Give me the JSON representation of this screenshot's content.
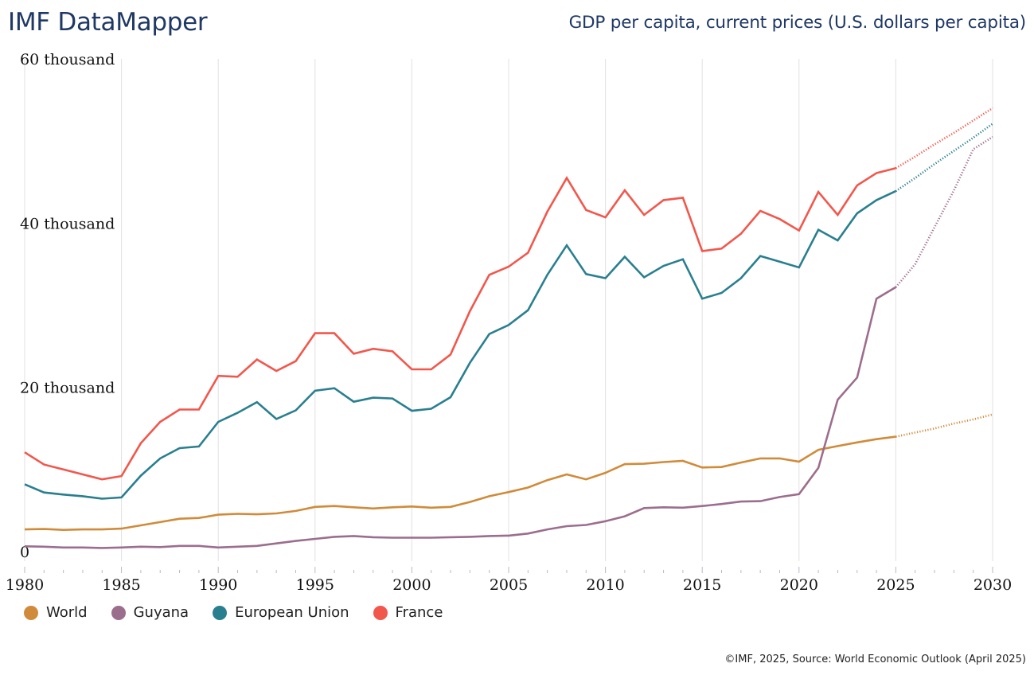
{
  "header": {
    "app_title": "IMF DataMapper",
    "chart_title": "GDP per capita, current prices (U.S. dollars per capita)"
  },
  "footer": {
    "credit": "©IMF, 2025, Source: World Economic Outlook (April 2025)"
  },
  "chart_data": {
    "type": "line",
    "title": "GDP per capita, current prices (U.S. dollars per capita)",
    "xlabel": "",
    "ylabel": "",
    "xlim": [
      1980,
      2030
    ],
    "ylim": [
      0,
      60000
    ],
    "grid": "vertical",
    "legend_position": "bottom-left",
    "projection_start": 2025,
    "y_ticks": [
      {
        "value": 0,
        "label": "0"
      },
      {
        "value": 20000,
        "label": "20 thousand"
      },
      {
        "value": 40000,
        "label": "40 thousand"
      },
      {
        "value": 60000,
        "label": "60 thousand"
      }
    ],
    "x_ticks": [
      {
        "value": 1980,
        "label": "1980"
      },
      {
        "value": 1985,
        "label": "1985"
      },
      {
        "value": 1990,
        "label": "1990"
      },
      {
        "value": 1995,
        "label": "1995"
      },
      {
        "value": 2000,
        "label": "2000"
      },
      {
        "value": 2005,
        "label": "2005"
      },
      {
        "value": 2010,
        "label": "2010"
      },
      {
        "value": 2015,
        "label": "2015"
      },
      {
        "value": 2020,
        "label": "2020"
      },
      {
        "value": 2025,
        "label": "2025"
      },
      {
        "value": 2030,
        "label": "2030"
      }
    ],
    "x": [
      1980,
      1981,
      1982,
      1983,
      1984,
      1985,
      1986,
      1987,
      1988,
      1989,
      1990,
      1991,
      1992,
      1993,
      1994,
      1995,
      1996,
      1997,
      1998,
      1999,
      2000,
      2001,
      2002,
      2003,
      2004,
      2005,
      2006,
      2007,
      2008,
      2009,
      2010,
      2011,
      2012,
      2013,
      2014,
      2015,
      2016,
      2017,
      2018,
      2019,
      2020,
      2021,
      2022,
      2023,
      2024,
      2025,
      2026,
      2027,
      2028,
      2029,
      2030
    ],
    "series": [
      {
        "name": "World",
        "color": "#d08b3a",
        "values": [
          2700,
          2750,
          2650,
          2700,
          2700,
          2800,
          3200,
          3600,
          4000,
          4100,
          4500,
          4600,
          4550,
          4650,
          4950,
          5450,
          5550,
          5400,
          5250,
          5400,
          5500,
          5350,
          5450,
          6050,
          6750,
          7250,
          7800,
          8700,
          9400,
          8800,
          9600,
          10650,
          10700,
          10900,
          11050,
          10250,
          10300,
          10850,
          11350,
          11350,
          10950,
          12400,
          12850,
          13300,
          13700,
          14000,
          14500,
          15000,
          15600,
          16100,
          16700
        ]
      },
      {
        "name": "Guyana",
        "color": "#9c6e8d",
        "values": [
          650,
          600,
          500,
          500,
          450,
          500,
          600,
          550,
          700,
          700,
          500,
          600,
          700,
          1000,
          1300,
          1550,
          1800,
          1900,
          1750,
          1700,
          1700,
          1700,
          1750,
          1800,
          1900,
          1950,
          2200,
          2700,
          3100,
          3250,
          3700,
          4300,
          5300,
          5400,
          5350,
          5550,
          5800,
          6100,
          6150,
          6650,
          7000,
          10200,
          18500,
          21200,
          30800,
          32200,
          35000,
          39500,
          44000,
          49000,
          50500
        ]
      },
      {
        "name": "European Union",
        "color": "#2a7f8f",
        "values": [
          8200,
          7200,
          6950,
          6750,
          6450,
          6600,
          9250,
          11350,
          12600,
          12800,
          15800,
          16900,
          18200,
          16150,
          17200,
          19600,
          19900,
          18250,
          18750,
          18650,
          17150,
          17400,
          18800,
          23000,
          26500,
          27600,
          29400,
          33700,
          37300,
          33800,
          33300,
          35900,
          33400,
          34800,
          35600,
          30800,
          31500,
          33300,
          36000,
          35300,
          34600,
          39200,
          37900,
          41200,
          42800,
          43900,
          45500,
          47200,
          48800,
          50400,
          52100
        ]
      },
      {
        "name": "France",
        "color": "#f2574c",
        "values": [
          12100,
          10600,
          10000,
          9400,
          8800,
          9200,
          13200,
          15800,
          17300,
          17300,
          21400,
          21300,
          23400,
          22000,
          23200,
          26600,
          26600,
          24100,
          24700,
          24400,
          22200,
          22200,
          24000,
          29300,
          33700,
          34700,
          36400,
          41400,
          45500,
          41600,
          40700,
          44000,
          41000,
          42800,
          43100,
          36600,
          36900,
          38700,
          41500,
          40500,
          39100,
          43800,
          41000,
          44600,
          46100,
          46700,
          48100,
          49600,
          51000,
          52500,
          54000
        ]
      }
    ]
  }
}
